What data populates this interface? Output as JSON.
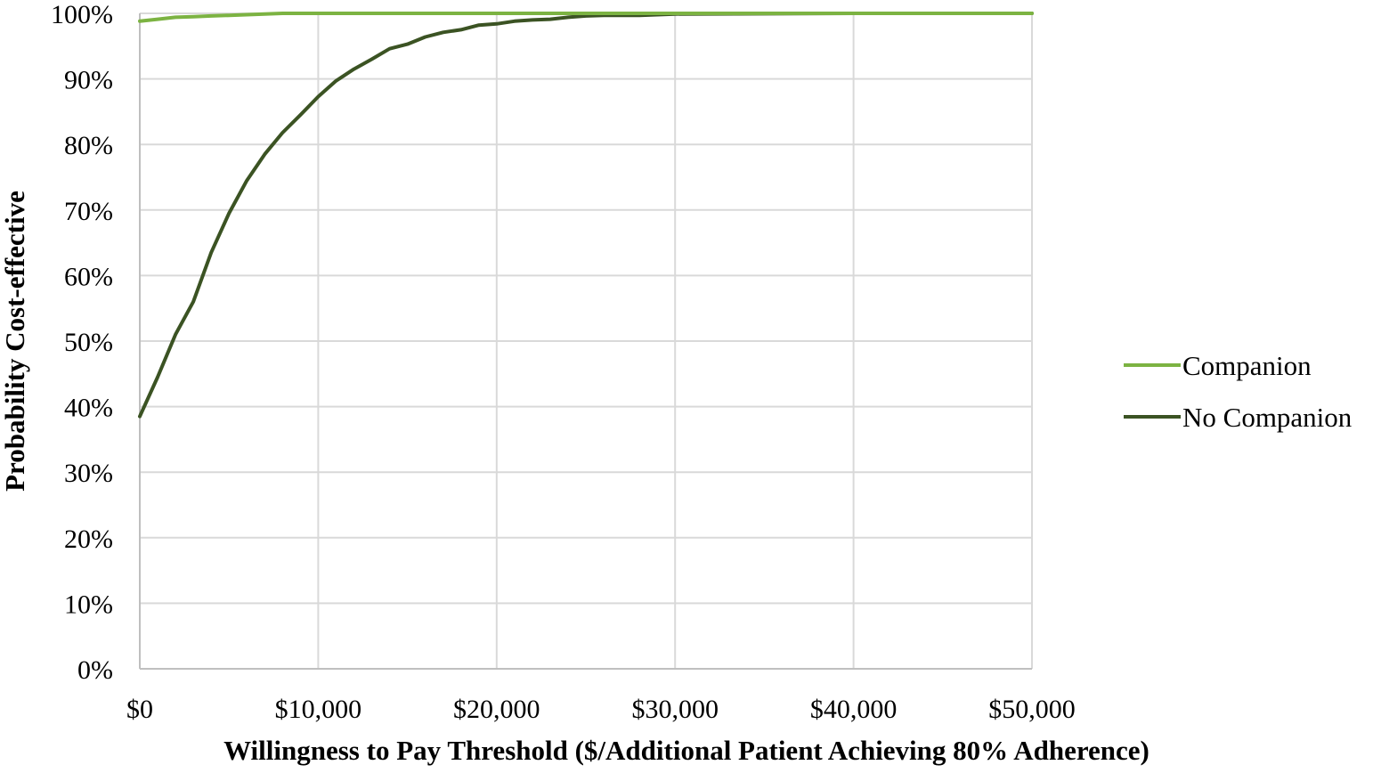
{
  "chart_data": {
    "type": "line",
    "title": "",
    "xlabel": "Willingness to Pay Threshold ($/Additional Patient Achieving 80% Adherence)",
    "ylabel": "Probability Cost-effective",
    "xlim": [
      0,
      50000
    ],
    "ylim": [
      0,
      100
    ],
    "x_ticks": [
      0,
      10000,
      20000,
      30000,
      40000,
      50000
    ],
    "x_tick_labels": [
      "$0",
      "$10,000",
      "$20,000",
      "$30,000",
      "$40,000",
      "$50,000"
    ],
    "y_ticks": [
      0,
      10,
      20,
      30,
      40,
      50,
      60,
      70,
      80,
      90,
      100
    ],
    "y_tick_labels": [
      "0%",
      "10%",
      "20%",
      "30%",
      "40%",
      "50%",
      "60%",
      "70%",
      "80%",
      "90%",
      "100%"
    ],
    "grid": true,
    "legend_position": "right",
    "series": [
      {
        "name": "Companion",
        "color": "#7cb342",
        "x": [
          0,
          1000,
          2000,
          3000,
          4000,
          5000,
          6000,
          7000,
          8000,
          10000,
          15000,
          20000,
          30000,
          40000,
          50000
        ],
        "values": [
          98.8,
          99.1,
          99.4,
          99.5,
          99.6,
          99.7,
          99.8,
          99.9,
          100,
          100,
          100,
          100,
          100,
          100,
          100
        ]
      },
      {
        "name": "No Companion",
        "color": "#3b5323",
        "x": [
          0,
          1000,
          2000,
          3000,
          4000,
          5000,
          6000,
          7000,
          8000,
          9000,
          10000,
          11000,
          12000,
          13000,
          14000,
          15000,
          16000,
          17000,
          18000,
          19000,
          20000,
          21000,
          22000,
          23000,
          24000,
          25000,
          26000,
          27000,
          28000,
          29000,
          30000,
          35000,
          40000,
          45000,
          50000
        ],
        "values": [
          38.5,
          44.5,
          51,
          56,
          63.5,
          69.5,
          74.5,
          78.5,
          81.8,
          84.5,
          87.3,
          89.7,
          91.5,
          93,
          94.6,
          95.3,
          96.4,
          97.1,
          97.5,
          98.2,
          98.4,
          98.8,
          99,
          99.1,
          99.4,
          99.6,
          99.7,
          99.7,
          99.7,
          99.8,
          99.9,
          99.95,
          100,
          100,
          100
        ]
      }
    ]
  }
}
